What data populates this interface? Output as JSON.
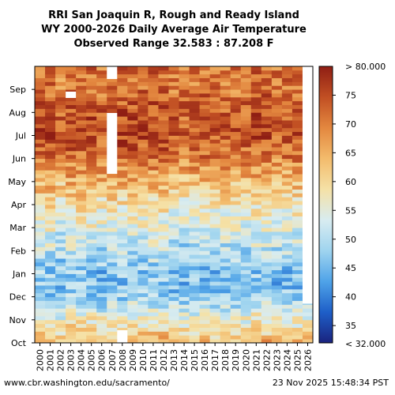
{
  "page": {
    "title_line1": "RRI San Joaquin R, Rough and Ready Island",
    "title_line2": "WY 2000-2026 Daily Average Air Temperature",
    "title_line3": "Observed Range 32.583 : 87.208 F",
    "footer_left": "www.cbr.washington.edu/sacramento/",
    "footer_right": "23 Nov 2025 15:48:34 PST"
  },
  "chart_data": {
    "type": "heatmap",
    "x_categories": [
      "2000",
      "2001",
      "2002",
      "2003",
      "2004",
      "2005",
      "2006",
      "2007",
      "2008",
      "2009",
      "2010",
      "2011",
      "2012",
      "2013",
      "2014",
      "2015",
      "2016",
      "2017",
      "2018",
      "2019",
      "2020",
      "2021",
      "2022",
      "2023",
      "2024",
      "2025",
      "2026"
    ],
    "y_categories": [
      "Oct",
      "Nov",
      "Dec",
      "Jan",
      "Feb",
      "Mar",
      "Apr",
      "May",
      "Jun",
      "Jul",
      "Aug",
      "Sep"
    ],
    "monthly_typical_values": [
      64,
      56,
      47,
      46,
      50,
      54,
      58,
      64,
      70,
      75,
      74,
      71
    ],
    "colorbar": {
      "labels": [
        "> 80.000",
        "75",
        "70",
        "65",
        "60",
        "55",
        "50",
        "45",
        "40",
        "35",
        "< 32.000"
      ],
      "ticks": [
        75,
        70,
        65,
        60,
        55,
        50,
        45,
        40,
        35
      ],
      "min": 32,
      "max": 80,
      "colors": [
        "#1a237e",
        "#1e5fc8",
        "#4fa3e8",
        "#9fd4ef",
        "#d8ecf0",
        "#f5e1a6",
        "#f3bb6c",
        "#e3873f",
        "#c14f23",
        "#8f1e14"
      ]
    },
    "notes": {
      "data_gap_years": [
        "2003",
        "2007",
        "2008"
      ],
      "partial_year": "2026"
    }
  }
}
